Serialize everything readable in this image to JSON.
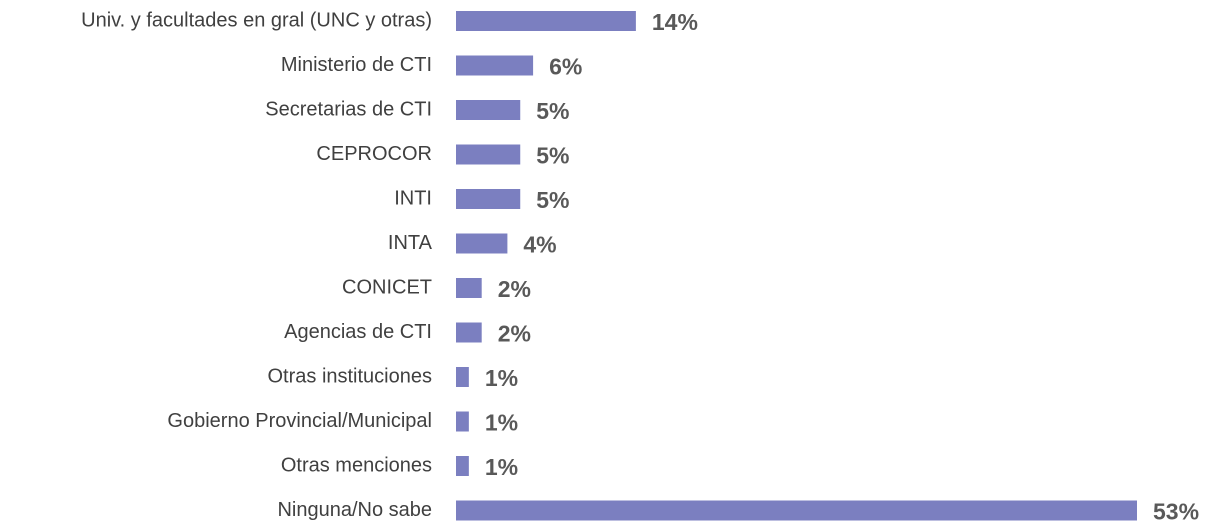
{
  "chart_data": {
    "type": "bar",
    "orientation": "horizontal",
    "color": "#7b7fc0",
    "categories": [
      "Univ. y facultades en gral (UNC y otras)",
      "Ministerio de CTI",
      "Secretarias de CTI",
      "CEPROCOR",
      "INTI",
      "INTA",
      "CONICET",
      "Agencias de CTI",
      "Otras instituciones",
      "Gobierno Provincial/Municipal",
      "Otras menciones",
      "Ninguna/No sabe"
    ],
    "values": [
      14,
      6,
      5,
      5,
      5,
      4,
      2,
      2,
      1,
      1,
      1,
      53
    ],
    "value_labels": [
      "14%",
      "6%",
      "5%",
      "5%",
      "5%",
      "4%",
      "2%",
      "2%",
      "1%",
      "1%",
      "1%",
      "53%"
    ]
  }
}
